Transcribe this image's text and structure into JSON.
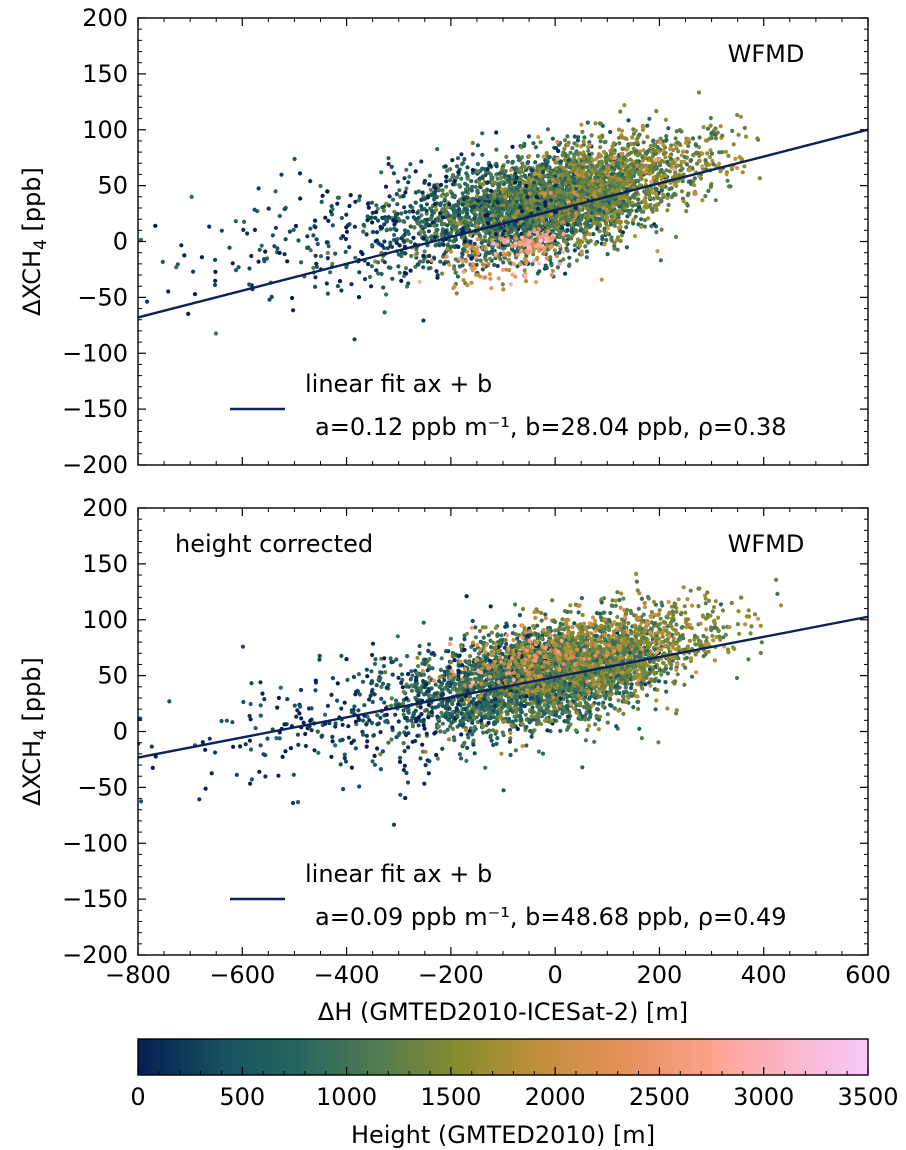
{
  "chart_data": [
    {
      "type": "scatter",
      "annotation": "WFMD",
      "xlim": [
        -800,
        600
      ],
      "ylim": [
        -200,
        200
      ],
      "xticks": [
        "−800",
        "−600",
        "−400",
        "−200",
        "0",
        "200",
        "400",
        "600"
      ],
      "yticks": [
        "200",
        "150",
        "100",
        "50",
        "0",
        "−50",
        "−100",
        "−150",
        "−200"
      ],
      "ylabel_main": "ΔXCH",
      "ylabel_sub": "4",
      "ylabel_unit": " [ppb]",
      "fit": {
        "a": 0.12,
        "b": 28.04,
        "rho": 0.38
      },
      "legend": {
        "label_line1": "linear fit ax + b",
        "label_line2": "a=0.12 ppb m⁻¹, b=28.04 ppb, ρ=0.38"
      },
      "points_note": "",
      "clusters": [
        {
          "cx": -60,
          "cy": 30,
          "sx": 110,
          "sy": 22,
          "h": 900,
          "n": 2200
        },
        {
          "cx": 60,
          "cy": 45,
          "sx": 90,
          "sy": 20,
          "h": 1300,
          "n": 1400
        },
        {
          "cx": -280,
          "cy": 15,
          "sx": 150,
          "sy": 30,
          "h": 300,
          "n": 350
        },
        {
          "cx": 200,
          "cy": 70,
          "sx": 90,
          "sy": 18,
          "h": 1500,
          "n": 350
        },
        {
          "cx": -100,
          "cy": -15,
          "sx": 70,
          "sy": 12,
          "h": 2200,
          "n": 120
        },
        {
          "cx": -40,
          "cy": 0,
          "sx": 25,
          "sy": 5,
          "h": 2700,
          "n": 60
        },
        {
          "cx": -550,
          "cy": -5,
          "sx": 140,
          "sy": 28,
          "h": 200,
          "n": 70
        }
      ]
    },
    {
      "type": "scatter",
      "annotation": "WFMD",
      "annotation_left": "height corrected",
      "xlim": [
        -800,
        600
      ],
      "ylim": [
        -200,
        200
      ],
      "xticks": [
        "−800",
        "−600",
        "−400",
        "−200",
        "0",
        "200",
        "400",
        "600"
      ],
      "yticks": [
        "200",
        "150",
        "100",
        "50",
        "0",
        "−50",
        "−100",
        "−150",
        "−200"
      ],
      "xlabel": "ΔH (GMTED2010-ICESat-2) [m]",
      "ylabel_main": "ΔXCH",
      "ylabel_sub": "4",
      "ylabel_unit": " [ppb]",
      "fit": {
        "a": 0.09,
        "b": 48.68,
        "rho": 0.49
      },
      "legend": {
        "label_line1": "linear fit ax + b",
        "label_line2": "a=0.09 ppb m⁻¹, b=48.68 ppb, ρ=0.49"
      },
      "clusters": [
        {
          "cx": -60,
          "cy": 45,
          "sx": 110,
          "sy": 22,
          "h": 900,
          "n": 2200
        },
        {
          "cx": 60,
          "cy": 60,
          "sx": 90,
          "sy": 20,
          "h": 1300,
          "n": 1400
        },
        {
          "cx": -280,
          "cy": 25,
          "sx": 150,
          "sy": 28,
          "h": 300,
          "n": 350
        },
        {
          "cx": 200,
          "cy": 85,
          "sx": 90,
          "sy": 18,
          "h": 1500,
          "n": 350
        },
        {
          "cx": -30,
          "cy": 70,
          "sx": 80,
          "sy": 15,
          "h": 2100,
          "n": 200
        },
        {
          "cx": -550,
          "cy": 0,
          "sx": 140,
          "sy": 25,
          "h": 200,
          "n": 70
        }
      ]
    }
  ],
  "colorbar": {
    "label": "Height (GMTED2010) [m]",
    "range": [
      0,
      3500
    ],
    "ticks": [
      "0",
      "500",
      "1000",
      "1500",
      "2000",
      "2500",
      "3000",
      "3500"
    ],
    "colors": [
      "#061d57",
      "#15505d",
      "#27665f",
      "#537c4f",
      "#8a8d2d",
      "#c48f3c",
      "#e5915c",
      "#fca188",
      "#fbb6c8",
      "#f6c9fb"
    ]
  },
  "styles": {
    "fit_color": "#0d2259"
  }
}
